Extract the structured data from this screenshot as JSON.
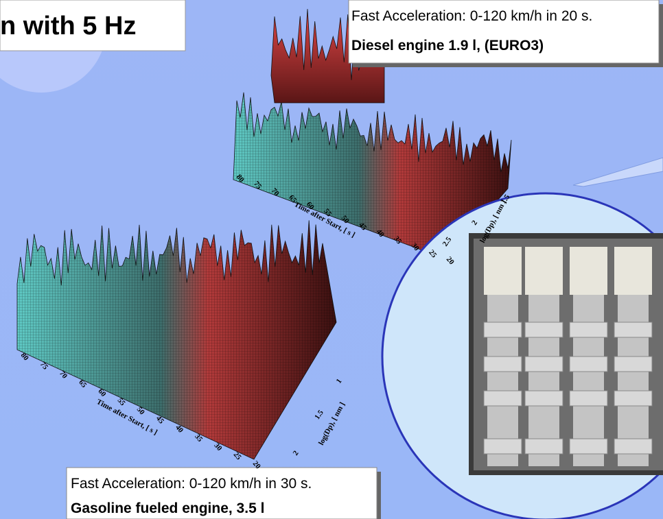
{
  "title": "n with 5 Hz",
  "top_box": {
    "line1": "Fast Acceleration: 0-120 km/h in 20 s.",
    "line2": "Diesel engine 1.9 l, (EURO3)"
  },
  "bottom_box": {
    "line1": "Fast Acceleration: 0-120 km/h in 30 s.",
    "line2": "Gasoline fueled engine, 3.5 l"
  },
  "top_plot": {
    "time_ticks": [
      80,
      75,
      70,
      65,
      60,
      55,
      50,
      45,
      40,
      35,
      30,
      25,
      20
    ],
    "time_label": "Time after Start, [ s ]",
    "size_ticks": [
      2.5,
      2,
      1.5
    ],
    "size_label": "log(Dp), [ nm ]"
  },
  "bottom_plot": {
    "time_ticks": [
      80,
      75,
      70,
      65,
      60,
      55,
      50,
      45,
      40,
      35,
      30,
      25,
      20
    ],
    "time_label": "Time after Start, [ s ]",
    "size_ticks": [
      2,
      1.5,
      1
    ],
    "size_label": "log(Dp), [ nm ]"
  }
}
